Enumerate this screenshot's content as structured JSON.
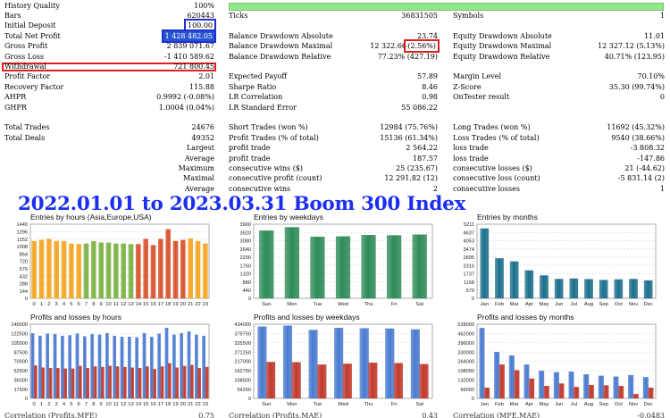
{
  "stats": {
    "rows": [
      {
        "c": [
          {
            "t": "History Quality",
            "x": 5,
            "a": "l"
          },
          {
            "t": "100%",
            "x": 240,
            "a": "r"
          }
        ],
        "greenBar": true
      },
      {
        "c": [
          {
            "t": "Bars",
            "x": 5,
            "a": "l"
          },
          {
            "t": "620443",
            "x": 240,
            "a": "r"
          },
          {
            "t": "Ticks",
            "x": 256,
            "a": "l"
          },
          {
            "t": "36831505",
            "x": 490,
            "a": "r"
          },
          {
            "t": "Symbols",
            "x": 507,
            "a": "l"
          },
          {
            "t": "1",
            "x": 744,
            "a": "r"
          }
        ]
      },
      {
        "c": [
          {
            "t": "Initial Deposit",
            "x": 5,
            "a": "l"
          },
          {
            "t": "100.00",
            "x": 240,
            "a": "r",
            "box": "blue"
          }
        ]
      },
      {
        "c": [
          {
            "t": "Total Net Profit",
            "x": 5,
            "a": "l"
          },
          {
            "t": "1 428 482.05",
            "x": 240,
            "a": "r",
            "box": "blue",
            "hl": true
          },
          {
            "t": "Balance Drawdown Absolute",
            "x": 256,
            "a": "l"
          },
          {
            "t": "23.74",
            "x": 490,
            "a": "r"
          },
          {
            "t": "Equity Drawdown Absolute",
            "x": 507,
            "a": "l"
          },
          {
            "t": "11.01",
            "x": 744,
            "a": "r"
          }
        ]
      },
      {
        "c": [
          {
            "t": "Gross Profit",
            "x": 5,
            "a": "l"
          },
          {
            "t": "2 839 071.67",
            "x": 240,
            "a": "r"
          },
          {
            "t": "Balance Drawdown Maximal",
            "x": 256,
            "a": "l"
          },
          {
            "t": "12 322.66",
            "x": 455,
            "a": "r"
          },
          {
            "t": "(2.56%)",
            "x": 490,
            "a": "r",
            "box": "red"
          },
          {
            "t": "Equity Drawdown Maximal",
            "x": 507,
            "a": "l"
          },
          {
            "t": "12 327.12 (5.13%)",
            "x": 744,
            "a": "r"
          }
        ]
      },
      {
        "c": [
          {
            "t": "Gross Loss",
            "x": 5,
            "a": "l"
          },
          {
            "t": "-1 410 589.62",
            "x": 240,
            "a": "r"
          },
          {
            "t": "Balance Drawdown Relative",
            "x": 256,
            "a": "l"
          },
          {
            "t": "77.23% (427.19)",
            "x": 490,
            "a": "r"
          },
          {
            "t": "Equity Drawdown Relative",
            "x": 507,
            "a": "l"
          },
          {
            "t": "40.71% (123.95)",
            "x": 744,
            "a": "r"
          }
        ]
      },
      {
        "c": [
          {
            "t": "Withdrawal",
            "x": 5,
            "a": "l"
          },
          {
            "t": "721 800.45",
            "x": 240,
            "a": "r"
          }
        ],
        "redRow": true
      },
      {
        "c": [
          {
            "t": "Profit Factor",
            "x": 5,
            "a": "l"
          },
          {
            "t": "2.01",
            "x": 240,
            "a": "r"
          },
          {
            "t": "Expected Payoff",
            "x": 256,
            "a": "l"
          },
          {
            "t": "57.89",
            "x": 490,
            "a": "r"
          },
          {
            "t": "Margin Level",
            "x": 507,
            "a": "l"
          },
          {
            "t": "70.10%",
            "x": 744,
            "a": "r"
          }
        ]
      },
      {
        "c": [
          {
            "t": "Recovery Factor",
            "x": 5,
            "a": "l"
          },
          {
            "t": "115.88",
            "x": 240,
            "a": "r"
          },
          {
            "t": "Sharpe Ratio",
            "x": 256,
            "a": "l"
          },
          {
            "t": "8.46",
            "x": 490,
            "a": "r"
          },
          {
            "t": "Z-Score",
            "x": 507,
            "a": "l"
          },
          {
            "t": "35.30 (99.74%)",
            "x": 744,
            "a": "r"
          }
        ]
      },
      {
        "c": [
          {
            "t": "AHPR",
            "x": 5,
            "a": "l"
          },
          {
            "t": "0.9992 (-0.08%)",
            "x": 240,
            "a": "r"
          },
          {
            "t": "LR Correlation",
            "x": 256,
            "a": "l"
          },
          {
            "t": "0.98",
            "x": 490,
            "a": "r"
          },
          {
            "t": "OnTester result",
            "x": 507,
            "a": "l"
          },
          {
            "t": "0",
            "x": 744,
            "a": "r"
          }
        ]
      },
      {
        "c": [
          {
            "t": "GHPR",
            "x": 5,
            "a": "l"
          },
          {
            "t": "1.0004 (0.04%)",
            "x": 240,
            "a": "r"
          },
          {
            "t": "LR Standard Error",
            "x": 256,
            "a": "l"
          },
          {
            "t": "55 086.22",
            "x": 490,
            "a": "r"
          }
        ]
      },
      {
        "c": []
      },
      {
        "c": [
          {
            "t": "Total Trades",
            "x": 5,
            "a": "l"
          },
          {
            "t": "24676",
            "x": 240,
            "a": "r"
          },
          {
            "t": "Short Trades (won %)",
            "x": 256,
            "a": "l"
          },
          {
            "t": "12984 (75.76%)",
            "x": 490,
            "a": "r"
          },
          {
            "t": "Long Trades (won %)",
            "x": 507,
            "a": "l"
          },
          {
            "t": "11692 (45.32%)",
            "x": 744,
            "a": "r"
          }
        ]
      },
      {
        "c": [
          {
            "t": "Total Deals",
            "x": 5,
            "a": "l"
          },
          {
            "t": "49352",
            "x": 240,
            "a": "r"
          },
          {
            "t": "Profit Trades (% of total)",
            "x": 256,
            "a": "l"
          },
          {
            "t": "15136 (61.34%)",
            "x": 490,
            "a": "r"
          },
          {
            "t": "Loss Trades (% of total)",
            "x": 507,
            "a": "l"
          },
          {
            "t": "9540 (38.66%)",
            "x": 744,
            "a": "r"
          }
        ]
      },
      {
        "c": [
          {
            "t": "Largest",
            "x": 240,
            "a": "r"
          },
          {
            "t": "profit trade",
            "x": 256,
            "a": "l"
          },
          {
            "t": "2 564.22",
            "x": 490,
            "a": "r"
          },
          {
            "t": "loss trade",
            "x": 507,
            "a": "l"
          },
          {
            "t": "-3 808.32",
            "x": 744,
            "a": "r"
          }
        ]
      },
      {
        "c": [
          {
            "t": "Average",
            "x": 240,
            "a": "r"
          },
          {
            "t": "profit trade",
            "x": 256,
            "a": "l"
          },
          {
            "t": "187.57",
            "x": 490,
            "a": "r"
          },
          {
            "t": "loss trade",
            "x": 507,
            "a": "l"
          },
          {
            "t": "-147.86",
            "x": 744,
            "a": "r"
          }
        ]
      },
      {
        "c": [
          {
            "t": "Maximum",
            "x": 240,
            "a": "r"
          },
          {
            "t": "consecutive wins ($)",
            "x": 256,
            "a": "l"
          },
          {
            "t": "25 (235.67)",
            "x": 490,
            "a": "r"
          },
          {
            "t": "consecutive losses ($)",
            "x": 507,
            "a": "l"
          },
          {
            "t": "21 (-44.62)",
            "x": 744,
            "a": "r"
          }
        ]
      },
      {
        "c": [
          {
            "t": "Maximal",
            "x": 240,
            "a": "r"
          },
          {
            "t": "consecutive profit (count)",
            "x": 256,
            "a": "l"
          },
          {
            "t": "12 291.82 (12)",
            "x": 490,
            "a": "r"
          },
          {
            "t": "consecutive loss (count)",
            "x": 507,
            "a": "l"
          },
          {
            "t": "-5 831.14 (2)",
            "x": 744,
            "a": "r"
          }
        ]
      },
      {
        "c": [
          {
            "t": "Average",
            "x": 240,
            "a": "r"
          },
          {
            "t": "consecutive wins",
            "x": 256,
            "a": "l"
          },
          {
            "t": "2",
            "x": 490,
            "a": "r"
          },
          {
            "t": "consecutive losses",
            "x": 507,
            "a": "l"
          },
          {
            "t": "1",
            "x": 744,
            "a": "r"
          }
        ]
      }
    ]
  },
  "overlay_title": "2022.01.01 to 2023.03.31 Boom 300 Index",
  "bottom": {
    "items": [
      {
        "t": "Correlation (Profits,MFE)",
        "x": 5,
        "a": "l"
      },
      {
        "t": "0.75",
        "x": 240,
        "a": "r"
      },
      {
        "t": "Correlation (Profits,MAE)",
        "x": 256,
        "a": "l"
      },
      {
        "t": "0.43",
        "x": 490,
        "a": "r"
      },
      {
        "t": "Correlation (MFE,MAE)",
        "x": 507,
        "a": "l"
      },
      {
        "t": "-0.0483",
        "x": 744,
        "a": "r"
      }
    ]
  },
  "colors": {
    "green": "#7cb342",
    "orange": "#f5a623",
    "red": "#d9532b",
    "darkgreen": "#2e8b57",
    "teal": "#1d6f8c",
    "blue": "#4a7bd0",
    "lossred": "#c0392b"
  },
  "chart_data": [
    {
      "type": "bar",
      "title": "Entries by hours (Asia,Europe,USA)",
      "categories": [
        "0",
        "1",
        "2",
        "3",
        "4",
        "5",
        "6",
        "7",
        "8",
        "9",
        "10",
        "11",
        "12",
        "13",
        "14",
        "15",
        "16",
        "17",
        "18",
        "19",
        "20",
        "21",
        "22",
        "23"
      ],
      "yticks": [
        "1440",
        "1296",
        "1152",
        "1008",
        "864",
        "720",
        "576",
        "432",
        "288",
        "144",
        "0"
      ],
      "ylim": [
        0,
        1440
      ],
      "values": [
        1110,
        1130,
        1150,
        1110,
        1110,
        1060,
        1050,
        1060,
        1110,
        1080,
        1080,
        1060,
        1060,
        1050,
        1050,
        1150,
        1030,
        1150,
        1340,
        1110,
        1130,
        1160,
        1110,
        1060
      ],
      "groups": [
        "orange",
        "orange",
        "orange",
        "orange",
        "orange",
        "orange",
        "orange",
        "green",
        "green",
        "green",
        "green",
        "green",
        "green",
        "green",
        "red",
        "red",
        "red",
        "red",
        "red",
        "red",
        "red",
        "orange",
        "orange",
        "orange"
      ]
    },
    {
      "type": "bar",
      "title": "Entries by weekdays",
      "categories": [
        "Sun",
        "Mon",
        "Tue",
        "Wed",
        "Thu",
        "Fri",
        "Sat"
      ],
      "yticks": [
        "3960",
        "3520",
        "3080",
        "2640",
        "2200",
        "1760",
        "1320",
        "880",
        "440",
        "0"
      ],
      "ylim": [
        0,
        3960
      ],
      "values": [
        3610,
        3790,
        3280,
        3300,
        3370,
        3360,
        3400
      ]
    },
    {
      "type": "bar",
      "title": "Entries by months",
      "categories": [
        "Jan",
        "Feb",
        "Mar",
        "Apr",
        "May",
        "Jun",
        "Jul",
        "Aug",
        "Sep",
        "Oct",
        "Nov",
        "Dec"
      ],
      "yticks": [
        "5211",
        "4637",
        "4053",
        "3474",
        "2895",
        "2316",
        "1737",
        "1158",
        "579",
        "0"
      ],
      "ylim": [
        0,
        5211
      ],
      "values": [
        4900,
        2800,
        2580,
        1950,
        1600,
        1350,
        1380,
        1340,
        1280,
        1320,
        1350,
        1250
      ]
    },
    {
      "type": "bar",
      "title": "Profits and losses by hours",
      "categories": [
        "0",
        "1",
        "2",
        "3",
        "4",
        "5",
        "6",
        "7",
        "8",
        "9",
        "10",
        "11",
        "12",
        "13",
        "14",
        "15",
        "16",
        "17",
        "18",
        "19",
        "20",
        "21",
        "22",
        "23"
      ],
      "yticks": [
        "140000",
        "122500",
        "105000",
        "87500",
        "70000",
        "52500",
        "35000",
        "17500",
        "0"
      ],
      "ylim": [
        0,
        140000
      ],
      "series": [
        {
          "name": "profit",
          "values": [
            122500,
            118000,
            122000,
            121000,
            118000,
            119000,
            122000,
            117000,
            121000,
            120000,
            123000,
            118000,
            116000,
            116000,
            115000,
            123000,
            116000,
            122000,
            133000,
            120000,
            123000,
            126000,
            120000,
            118000
          ]
        },
        {
          "name": "loss",
          "values": [
            62000,
            58000,
            57000,
            57000,
            56000,
            56000,
            61000,
            57000,
            60000,
            59000,
            61000,
            60000,
            59000,
            58000,
            57000,
            60000,
            55000,
            60000,
            66000,
            58000,
            61000,
            63000,
            57000,
            59000
          ]
        }
      ]
    },
    {
      "type": "bar",
      "title": "Profits and losses by weekdays",
      "categories": [
        "Sun",
        "Mon",
        "Tue",
        "Wed",
        "Thu",
        "Fri",
        "Sat"
      ],
      "yticks": [
        "434000",
        "379750",
        "325500",
        "271250",
        "217000",
        "162750",
        "108500",
        "54250",
        "0"
      ],
      "ylim": [
        0,
        434000
      ],
      "series": [
        {
          "name": "profit",
          "values": [
            420000,
            425000,
            400000,
            412000,
            410000,
            408000,
            403000
          ]
        },
        {
          "name": "loss",
          "values": [
            212000,
            211000,
            197000,
            202000,
            208000,
            206000,
            200000
          ]
        }
      ]
    },
    {
      "type": "bar",
      "title": "Profits and losses by months",
      "categories": [
        "Jan",
        "Feb",
        "Mar",
        "Apr",
        "May",
        "Jun",
        "Jul",
        "Aug",
        "Sep",
        "Oct",
        "Nov",
        "Dec"
      ],
      "yticks": [
        "528000",
        "462000",
        "396000",
        "330000",
        "264000",
        "198000",
        "132000",
        "66000",
        "0"
      ],
      "ylim": [
        0,
        528000
      ],
      "series": [
        {
          "name": "profit",
          "values": [
            500000,
            330000,
            305000,
            240000,
            195000,
            185000,
            190000,
            170000,
            160000,
            155000,
            165000,
            150000
          ]
        },
        {
          "name": "loss",
          "values": [
            75000,
            240000,
            200000,
            140000,
            88000,
            105000,
            80000,
            95000,
            92000,
            88000,
            30000,
            75000
          ]
        }
      ]
    }
  ]
}
